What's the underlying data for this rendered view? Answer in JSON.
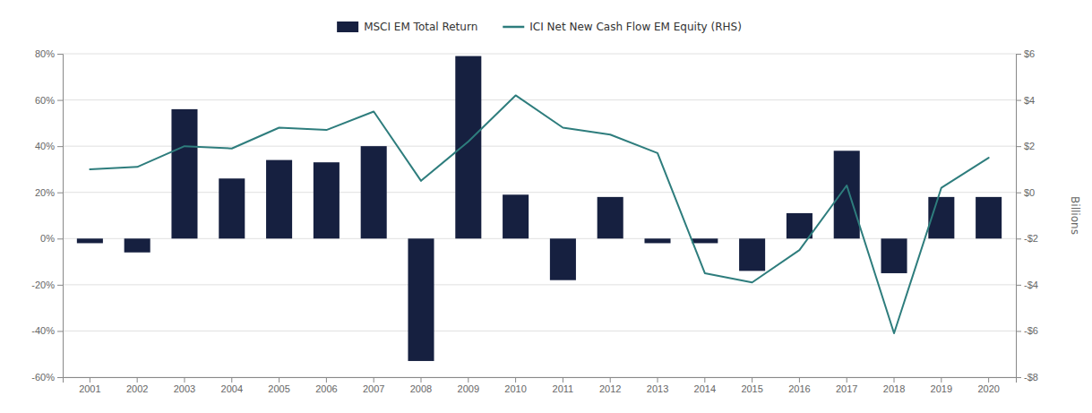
{
  "chart_data": {
    "type": "bar",
    "categories": [
      "2001",
      "2002",
      "2003",
      "2004",
      "2005",
      "2006",
      "2007",
      "2008",
      "2009",
      "2010",
      "2011",
      "2012",
      "2013",
      "2014",
      "2015",
      "2016",
      "2017",
      "2018",
      "2019",
      "2020"
    ],
    "series": [
      {
        "name": "MSCI EM Total Return",
        "type": "bar",
        "color": "#162040",
        "values": [
          -2,
          -6,
          56,
          26,
          34,
          33,
          40,
          -53,
          79,
          19,
          -18,
          18,
          -2,
          -2,
          -14,
          11,
          38,
          -15,
          18,
          18
        ]
      },
      {
        "name": "ICI Net New Cash Flow EM Equity (RHS)",
        "type": "line",
        "color": "#2e7d7d",
        "axis": "y2",
        "values": [
          1.0,
          1.1,
          2.0,
          1.9,
          2.8,
          2.7,
          3.5,
          0.5,
          2.2,
          4.2,
          2.8,
          2.5,
          1.7,
          -3.5,
          -3.9,
          -2.5,
          0.3,
          -6.1,
          0.2,
          1.5
        ]
      }
    ],
    "ylim": [
      -60,
      80
    ],
    "yticks": [
      {
        "value": -60,
        "label": "-60%"
      },
      {
        "value": -40,
        "label": "-40%"
      },
      {
        "value": -20,
        "label": "-20%"
      },
      {
        "value": 0,
        "label": "0%"
      },
      {
        "value": 20,
        "label": "20%"
      },
      {
        "value": 40,
        "label": "40%"
      },
      {
        "value": 60,
        "label": "60%"
      },
      {
        "value": 80,
        "label": "80%"
      }
    ],
    "y2lim": [
      -8,
      6
    ],
    "y2ticks": [
      {
        "value": -8,
        "label": "-$8"
      },
      {
        "value": -6,
        "label": "-$6"
      },
      {
        "value": -4,
        "label": "-$4"
      },
      {
        "value": -2,
        "label": "-$2"
      },
      {
        "value": 0,
        "label": "$0"
      },
      {
        "value": 2,
        "label": "$2"
      },
      {
        "value": 4,
        "label": "$4"
      },
      {
        "value": 6,
        "label": "$6"
      }
    ],
    "y2label": "Billions",
    "grid": true,
    "legend": "top"
  }
}
